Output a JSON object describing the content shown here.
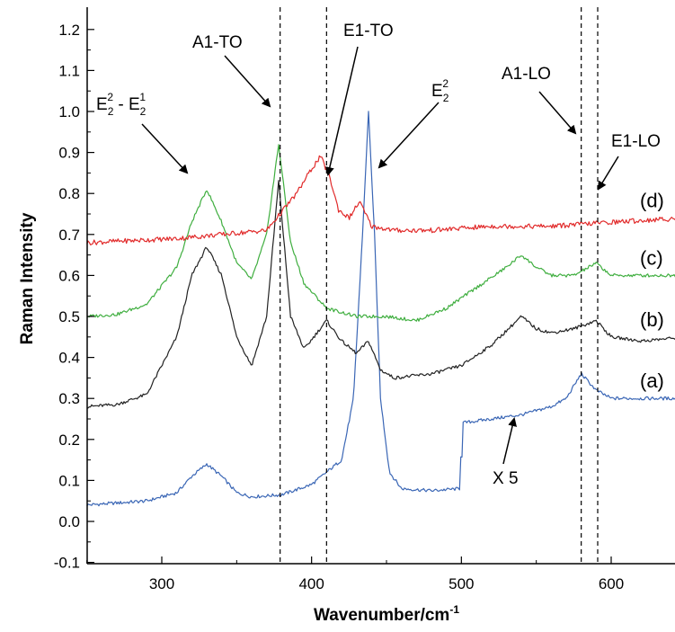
{
  "chart_data": {
    "type": "line",
    "title": "",
    "xlabel": "Wavenumber/cm",
    "xlabel_sup": "-1",
    "ylabel": "Raman Intensity",
    "xlim": [
      250,
      650
    ],
    "ylim": [
      -0.1,
      1.25
    ],
    "xticks": [
      300,
      400,
      500,
      600
    ],
    "xtick_labels": [
      "300",
      "400",
      "500",
      "600"
    ],
    "yticks": [
      -0.1,
      0.0,
      0.1,
      0.2,
      0.3,
      0.4,
      0.5,
      0.6,
      0.7,
      0.8,
      0.9,
      1.0,
      1.1,
      1.2
    ],
    "ytick_labels": [
      "-0.1",
      "0.0",
      "0.1",
      "0.2",
      "0.3",
      "0.4",
      "0.5",
      "0.6",
      "0.7",
      "0.8",
      "0.9",
      "1.0",
      "1.1",
      "1.2"
    ],
    "grid": false,
    "legend": "none",
    "reference_lines_x": [
      379,
      410,
      580,
      591
    ],
    "series": [
      {
        "label": "(a)",
        "color": "#3a66b5",
        "x": [
          250,
          270,
          290,
          310,
          320,
          330,
          340,
          350,
          360,
          380,
          400,
          420,
          428,
          434,
          438,
          442,
          446,
          452,
          460,
          480,
          499,
          500,
          520,
          540,
          560,
          570,
          580,
          590,
          600,
          620,
          650
        ],
        "y": [
          0.04,
          0.045,
          0.05,
          0.07,
          0.11,
          0.14,
          0.11,
          0.07,
          0.06,
          0.065,
          0.09,
          0.15,
          0.3,
          0.7,
          1.0,
          0.7,
          0.3,
          0.12,
          0.08,
          0.075,
          0.08,
          0.24,
          0.25,
          0.26,
          0.28,
          0.3,
          0.36,
          0.32,
          0.3,
          0.3,
          0.3
        ]
      },
      {
        "label": "(b)",
        "color": "#222222",
        "x": [
          250,
          270,
          290,
          310,
          320,
          330,
          340,
          350,
          360,
          370,
          378,
          386,
          395,
          410,
          420,
          430,
          438,
          446,
          455,
          480,
          500,
          520,
          540,
          550,
          560,
          575,
          590,
          600,
          620,
          650
        ],
        "y": [
          0.28,
          0.285,
          0.31,
          0.45,
          0.6,
          0.67,
          0.6,
          0.45,
          0.38,
          0.5,
          0.83,
          0.5,
          0.42,
          0.49,
          0.44,
          0.41,
          0.44,
          0.37,
          0.35,
          0.36,
          0.38,
          0.43,
          0.5,
          0.47,
          0.46,
          0.47,
          0.49,
          0.45,
          0.44,
          0.45
        ]
      },
      {
        "label": "(c)",
        "color": "#3fae3f",
        "x": [
          250,
          270,
          290,
          310,
          320,
          330,
          340,
          350,
          360,
          370,
          378,
          386,
          395,
          410,
          430,
          450,
          470,
          490,
          510,
          530,
          540,
          550,
          560,
          575,
          590,
          600,
          620,
          650
        ],
        "y": [
          0.5,
          0.505,
          0.53,
          0.62,
          0.73,
          0.81,
          0.73,
          0.63,
          0.59,
          0.7,
          0.92,
          0.68,
          0.58,
          0.52,
          0.5,
          0.5,
          0.49,
          0.52,
          0.57,
          0.62,
          0.65,
          0.62,
          0.6,
          0.6,
          0.63,
          0.6,
          0.6,
          0.6
        ]
      },
      {
        "label": "(d)",
        "color": "#e12a2a",
        "x": [
          250,
          280,
          310,
          340,
          370,
          390,
          400,
          406,
          412,
          418,
          425,
          432,
          440,
          455,
          480,
          520,
          560,
          600,
          650
        ],
        "y": [
          0.68,
          0.685,
          0.69,
          0.7,
          0.71,
          0.8,
          0.86,
          0.89,
          0.84,
          0.76,
          0.74,
          0.78,
          0.72,
          0.71,
          0.71,
          0.72,
          0.72,
          0.73,
          0.74
        ]
      }
    ],
    "annotations": {
      "e22_e21": {
        "main1": "E",
        "sub1": "2",
        "sup1": "2",
        "dash": " - E",
        "sub2": "2",
        "sup2": "1"
      },
      "a1_to": "A1-TO",
      "e1_to": "E1-TO",
      "e22": {
        "main": "E",
        "sub": "2",
        "sup": "2"
      },
      "a1_lo": "A1-LO",
      "e1_lo": "E1-LO",
      "x5": "X 5"
    }
  }
}
